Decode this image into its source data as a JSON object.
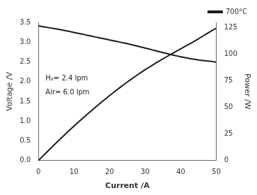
{
  "chart_data": {
    "type": "line",
    "x_label": "Current /A",
    "y_label": "Voltage /V",
    "y2_label": "Power /W",
    "x": [
      0,
      1,
      2,
      3,
      4,
      5,
      6,
      7,
      8,
      9,
      10,
      11,
      12,
      13,
      14,
      15,
      16,
      17,
      18,
      19,
      20,
      21,
      22,
      23,
      24,
      25,
      26,
      27,
      28,
      29,
      30,
      31,
      32,
      33,
      34,
      35,
      36,
      37,
      38,
      39,
      40,
      41,
      42,
      43,
      44,
      45,
      46,
      47,
      48,
      49,
      50
    ],
    "series": [
      {
        "name": "700°C",
        "color": "#1a1a1a",
        "axis": "y",
        "values": [
          3.41,
          3.395,
          3.38,
          3.365,
          3.35,
          3.335,
          3.318,
          3.3,
          3.282,
          3.264,
          3.245,
          3.226,
          3.207,
          3.188,
          3.169,
          3.15,
          3.131,
          3.112,
          3.093,
          3.074,
          3.055,
          3.036,
          3.017,
          2.998,
          2.979,
          2.96,
          2.938,
          2.916,
          2.894,
          2.872,
          2.85,
          2.826,
          2.803,
          2.78,
          2.757,
          2.734,
          2.712,
          2.69,
          2.669,
          2.648,
          2.628,
          2.61,
          2.593,
          2.576,
          2.562,
          2.548,
          2.537,
          2.526,
          2.516,
          2.507,
          2.49
        ]
      },
      {
        "color": "#1a1a1a",
        "axis": "y2",
        "values": [
          0,
          3.395,
          6.76,
          10.095,
          13.4,
          16.675,
          19.908,
          23.1,
          26.256,
          29.376,
          32.45,
          35.486,
          38.484,
          41.444,
          44.366,
          47.25,
          50.096,
          52.904,
          55.674,
          58.406,
          61.1,
          63.756,
          66.374,
          68.954,
          71.496,
          74.0,
          76.388,
          78.732,
          81.032,
          83.288,
          85.5,
          87.606,
          89.696,
          91.74,
          93.738,
          95.69,
          97.632,
          99.53,
          101.422,
          103.272,
          105.12,
          107.01,
          108.906,
          110.768,
          112.728,
          114.66,
          116.702,
          118.722,
          120.768,
          122.843,
          124.5
        ]
      }
    ],
    "xlim": [
      0,
      50
    ],
    "xticks": [
      0,
      10,
      20,
      30,
      40,
      50
    ],
    "ylim": [
      0,
      3.5
    ],
    "yticks": [
      {
        "value": 0,
        "label": "0.0"
      },
      0.5,
      {
        "value": 1,
        "label": "1.0"
      },
      1.5,
      {
        "value": 2,
        "label": "2.0"
      },
      2.5,
      {
        "value": 3,
        "label": "3.0"
      },
      3.5
    ],
    "y2lim": [
      0,
      130
    ],
    "y2ticks": [
      0,
      25,
      50,
      75,
      100,
      125
    ],
    "annotations": [
      "H₂= 2.4 lpm",
      "Air= 6.0 lpm"
    ],
    "legend": "upper right",
    "grid": false
  }
}
